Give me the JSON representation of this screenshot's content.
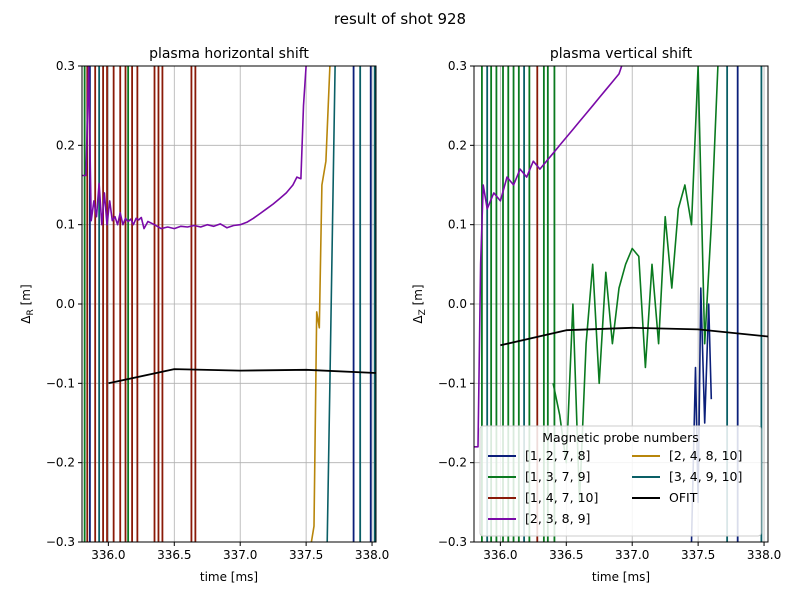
{
  "figure": {
    "title": "result of shot 928"
  },
  "colors": {
    "p1278": "#0b1f7a",
    "p1379": "#0a7a1f",
    "p14710": "#8a1a08",
    "p2389": "#7a0aa8",
    "p24810": "#b8860b",
    "p34910": "#0a5f66",
    "ofit": "#000000",
    "grid": "#b0b0b0"
  },
  "legend": {
    "title": "Magnetic probe numbers",
    "entries": [
      {
        "label": "[1, 2, 7, 8]",
        "color": "#0b1f7a"
      },
      {
        "label": "[1, 3, 7, 9]",
        "color": "#0a7a1f"
      },
      {
        "label": "[1, 4, 7, 10]",
        "color": "#8a1a08"
      },
      {
        "label": "[2, 3, 8, 9]",
        "color": "#7a0aa8"
      },
      {
        "label": "[2, 4, 8, 10]",
        "color": "#b8860b"
      },
      {
        "label": "[3, 4, 9, 10]",
        "color": "#0a5f66"
      },
      {
        "label": "OFIT",
        "color": "#000000"
      }
    ]
  },
  "chart_data": [
    {
      "type": "line",
      "title": "plasma horizontal shift",
      "xlabel": "time [ms]",
      "ylabel": "Δ",
      "ylabel_sub": "R",
      "ylabel_unit": " [m]",
      "xlim": [
        335.8,
        338.03
      ],
      "ylim": [
        -0.3,
        0.3
      ],
      "xticks": [
        336.0,
        336.5,
        337.0,
        337.5,
        338.0
      ],
      "xtick_labels": [
        "336.0",
        "336.5",
        "337.0",
        "337.5",
        "338.0"
      ],
      "yticks": [
        -0.3,
        -0.2,
        -0.1,
        0.0,
        0.1,
        0.2,
        0.3
      ],
      "ytick_labels": [
        "−0.3",
        "−0.2",
        "−0.1",
        "0.0",
        "0.1",
        "0.2",
        "0.3"
      ],
      "grid": true,
      "vertical_spikes": [
        {
          "x": 335.82,
          "color": "#0a7a1f"
        },
        {
          "x": 335.84,
          "color": "#8a1a08"
        },
        {
          "x": 335.86,
          "color": "#0b1f7a"
        },
        {
          "x": 335.9,
          "color": "#8a1a08"
        },
        {
          "x": 335.93,
          "color": "#0a5f66"
        },
        {
          "x": 335.96,
          "color": "#8a1a08"
        },
        {
          "x": 335.99,
          "color": "#8a1a08"
        },
        {
          "x": 336.04,
          "color": "#8a1a08"
        },
        {
          "x": 336.09,
          "color": "#8a1a08"
        },
        {
          "x": 336.13,
          "color": "#8a1a08"
        },
        {
          "x": 336.15,
          "color": "#0a7a1f"
        },
        {
          "x": 336.18,
          "color": "#8a1a08"
        },
        {
          "x": 336.22,
          "color": "#8a1a08"
        },
        {
          "x": 336.35,
          "color": "#8a1a08"
        },
        {
          "x": 336.38,
          "color": "#8a1a08"
        },
        {
          "x": 336.41,
          "color": "#8a1a08"
        },
        {
          "x": 336.63,
          "color": "#8a1a08"
        },
        {
          "x": 336.66,
          "color": "#8a1a08"
        },
        {
          "x": 337.86,
          "color": "#0b1f7a"
        },
        {
          "x": 337.91,
          "color": "#0a5f66"
        },
        {
          "x": 337.99,
          "color": "#0b1f7a"
        },
        {
          "x": 338.02,
          "color": "#0a5f66"
        }
      ],
      "series": [
        {
          "color": "#7a0aa8",
          "x": [
            335.8,
            335.83,
            335.85,
            335.87,
            335.89,
            335.91,
            335.93,
            335.95,
            335.97,
            335.99,
            336.01,
            336.03,
            336.05,
            336.07,
            336.09,
            336.11,
            336.13,
            336.15,
            336.17,
            336.19,
            336.21,
            336.23,
            336.25,
            336.27,
            336.3,
            336.35,
            336.4,
            336.45,
            336.5,
            336.55,
            336.6,
            336.65,
            336.7,
            336.75,
            336.8,
            336.85,
            336.9,
            336.95,
            337.0,
            337.05,
            337.1,
            337.15,
            337.2,
            337.25,
            337.3,
            337.35,
            337.4,
            337.43,
            337.46,
            337.48,
            337.5
          ],
          "y": [
            0.162,
            0.162,
            0.3,
            0.105,
            0.13,
            0.11,
            0.152,
            0.1,
            0.14,
            0.1,
            0.13,
            0.105,
            0.11,
            0.1,
            0.115,
            0.1,
            0.108,
            0.104,
            0.107,
            0.1,
            0.108,
            0.106,
            0.109,
            0.095,
            0.104,
            0.1,
            0.095,
            0.097,
            0.095,
            0.098,
            0.097,
            0.099,
            0.097,
            0.1,
            0.098,
            0.101,
            0.096,
            0.099,
            0.1,
            0.103,
            0.108,
            0.114,
            0.12,
            0.126,
            0.133,
            0.14,
            0.15,
            0.16,
            0.158,
            0.25,
            0.3
          ]
        },
        {
          "color": "#b8860b",
          "x": [
            337.54,
            337.56,
            337.58,
            337.6,
            337.62,
            337.65,
            337.68
          ],
          "y": [
            -0.3,
            -0.28,
            -0.01,
            -0.03,
            0.15,
            0.18,
            0.3
          ]
        },
        {
          "color": "#0a5f66",
          "x": [
            337.66,
            337.68,
            337.7,
            337.72
          ],
          "y": [
            -0.3,
            -0.1,
            0.1,
            0.3
          ]
        },
        {
          "color": "#000000",
          "x": [
            336.0,
            336.5,
            337.0,
            337.5,
            338.03
          ],
          "y": [
            -0.1,
            -0.082,
            -0.084,
            -0.083,
            -0.087
          ]
        }
      ]
    },
    {
      "type": "line",
      "title": "plasma vertical shift",
      "xlabel": "time [ms]",
      "ylabel": "Δ",
      "ylabel_sub": "Z",
      "ylabel_unit": " [m]",
      "xlim": [
        335.8,
        338.03
      ],
      "ylim": [
        -0.3,
        0.3
      ],
      "xticks": [
        336.0,
        336.5,
        337.0,
        337.5,
        338.0
      ],
      "xtick_labels": [
        "336.0",
        "336.5",
        "337.0",
        "337.5",
        "338.0"
      ],
      "yticks": [
        -0.3,
        -0.2,
        -0.1,
        0.0,
        0.1,
        0.2,
        0.3
      ],
      "ytick_labels": [
        "−0.3",
        "−0.2",
        "−0.1",
        "0.0",
        "0.1",
        "0.2",
        "0.3"
      ],
      "grid": true,
      "vertical_spikes": [
        {
          "x": 335.86,
          "color": "#0a7a1f"
        },
        {
          "x": 335.9,
          "color": "#0a5f66"
        },
        {
          "x": 335.93,
          "color": "#0a7a1f"
        },
        {
          "x": 335.97,
          "color": "#0a7a1f"
        },
        {
          "x": 336.02,
          "color": "#0a7a1f"
        },
        {
          "x": 336.06,
          "color": "#0a7a1f"
        },
        {
          "x": 336.1,
          "color": "#0a7a1f"
        },
        {
          "x": 336.14,
          "color": "#0a7a1f"
        },
        {
          "x": 336.18,
          "color": "#0a5f66"
        },
        {
          "x": 336.22,
          "color": "#0a7a1f"
        },
        {
          "x": 336.28,
          "color": "#8a1a08"
        },
        {
          "x": 336.33,
          "color": "#0a7a1f"
        },
        {
          "x": 336.36,
          "color": "#0a7a1f"
        },
        {
          "x": 336.41,
          "color": "#0a7a1f"
        },
        {
          "x": 337.72,
          "color": "#0a5f66"
        },
        {
          "x": 337.8,
          "color": "#0b1f7a"
        },
        {
          "x": 337.98,
          "color": "#0a5f66"
        }
      ],
      "series": [
        {
          "color": "#7a0aa8",
          "x": [
            335.8,
            335.83,
            335.85,
            335.87,
            335.9,
            335.95,
            336.0,
            336.05,
            336.1,
            336.15,
            336.2,
            336.25,
            336.3,
            336.35,
            336.4,
            336.45,
            336.5,
            336.55,
            336.6,
            336.65,
            336.7,
            336.75,
            336.8,
            336.85,
            336.9,
            336.92
          ],
          "y": [
            -0.18,
            -0.18,
            0.05,
            0.15,
            0.12,
            0.14,
            0.13,
            0.16,
            0.15,
            0.17,
            0.16,
            0.18,
            0.17,
            0.18,
            0.19,
            0.2,
            0.21,
            0.22,
            0.23,
            0.24,
            0.25,
            0.26,
            0.27,
            0.28,
            0.29,
            0.3
          ]
        },
        {
          "color": "#0a7a1f",
          "x": [
            336.4,
            336.45,
            336.5,
            336.55,
            336.6,
            336.65,
            336.7,
            336.75,
            336.8,
            336.85,
            336.9,
            336.95,
            337.0,
            337.05,
            337.1,
            337.15,
            337.2,
            337.25,
            337.3,
            337.35,
            337.4,
            337.45,
            337.5,
            337.55,
            337.6,
            337.65
          ],
          "y": [
            -0.1,
            -0.14,
            -0.2,
            0.0,
            -0.25,
            -0.05,
            0.05,
            -0.1,
            0.04,
            -0.05,
            0.02,
            0.05,
            0.07,
            0.06,
            -0.08,
            0.05,
            -0.05,
            0.11,
            0.02,
            0.12,
            0.15,
            0.1,
            0.3,
            -0.05,
            0.1,
            0.3
          ]
        },
        {
          "color": "#0b1f7a",
          "x": [
            337.45,
            337.48,
            337.5,
            337.52,
            337.55,
            337.58,
            337.6
          ],
          "y": [
            -0.3,
            -0.08,
            -0.25,
            0.02,
            -0.15,
            0.0,
            -0.12
          ]
        },
        {
          "color": "#000000",
          "x": [
            336.0,
            336.5,
            337.0,
            337.5,
            338.03
          ],
          "y": [
            -0.052,
            -0.033,
            -0.03,
            -0.032,
            -0.041
          ]
        }
      ]
    }
  ]
}
